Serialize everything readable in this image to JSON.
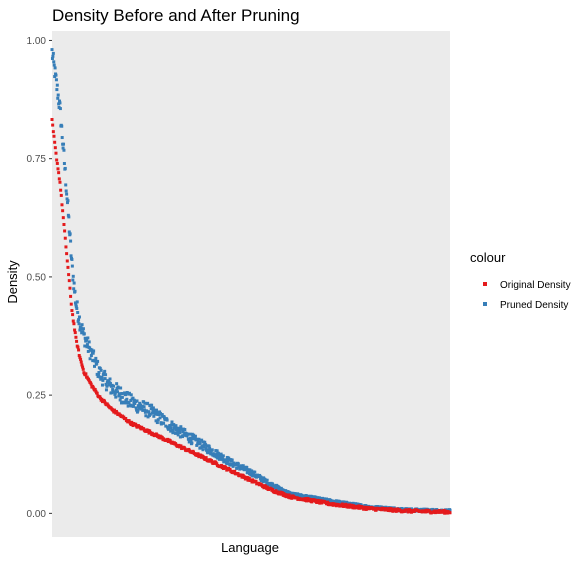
{
  "chart_data": {
    "type": "scatter",
    "title": "Density Before and After Pruning",
    "xlabel": "Language",
    "ylabel": "Density",
    "ylim": [
      -0.05,
      1.02
    ],
    "x_range": [
      0,
      1
    ],
    "yticks": [
      0.0,
      0.25,
      0.5,
      0.75,
      1.0
    ],
    "ytick_labels": [
      "0.00",
      "0.25",
      "0.50",
      "0.75",
      "1.00"
    ],
    "x_tick_labels_shown": false,
    "grid": false,
    "panel_background": "#ebebeb",
    "legend": {
      "title": "colour",
      "position": "right"
    },
    "series": [
      {
        "name": "Original Density",
        "color": "#e41a1c",
        "curve": [
          [
            0.0,
            0.83
          ],
          [
            0.01,
            0.76
          ],
          [
            0.02,
            0.7
          ],
          [
            0.03,
            0.61
          ],
          [
            0.04,
            0.52
          ],
          [
            0.05,
            0.43
          ],
          [
            0.06,
            0.37
          ],
          [
            0.07,
            0.33
          ],
          [
            0.08,
            0.3
          ],
          [
            0.1,
            0.27
          ],
          [
            0.12,
            0.245
          ],
          [
            0.15,
            0.22
          ],
          [
            0.2,
            0.19
          ],
          [
            0.25,
            0.17
          ],
          [
            0.3,
            0.15
          ],
          [
            0.35,
            0.13
          ],
          [
            0.4,
            0.11
          ],
          [
            0.45,
            0.09
          ],
          [
            0.5,
            0.07
          ],
          [
            0.55,
            0.05
          ],
          [
            0.6,
            0.035
          ],
          [
            0.7,
            0.02
          ],
          [
            0.8,
            0.01
          ],
          [
            0.9,
            0.005
          ],
          [
            1.0,
            0.003
          ]
        ]
      },
      {
        "name": "Pruned Density",
        "color": "#377eb8",
        "curve": [
          [
            0.0,
            0.97
          ],
          [
            0.01,
            0.91
          ],
          [
            0.02,
            0.85
          ],
          [
            0.03,
            0.75
          ],
          [
            0.04,
            0.64
          ],
          [
            0.05,
            0.52
          ],
          [
            0.06,
            0.44
          ],
          [
            0.07,
            0.4
          ],
          [
            0.08,
            0.37
          ],
          [
            0.1,
            0.33
          ],
          [
            0.12,
            0.29
          ],
          [
            0.15,
            0.26
          ],
          [
            0.2,
            0.23
          ],
          [
            0.25,
            0.21
          ],
          [
            0.3,
            0.18
          ],
          [
            0.35,
            0.155
          ],
          [
            0.4,
            0.13
          ],
          [
            0.45,
            0.105
          ],
          [
            0.5,
            0.085
          ],
          [
            0.55,
            0.06
          ],
          [
            0.6,
            0.04
          ],
          [
            0.7,
            0.025
          ],
          [
            0.8,
            0.012
          ],
          [
            0.9,
            0.006
          ],
          [
            1.0,
            0.004
          ]
        ]
      }
    ]
  }
}
